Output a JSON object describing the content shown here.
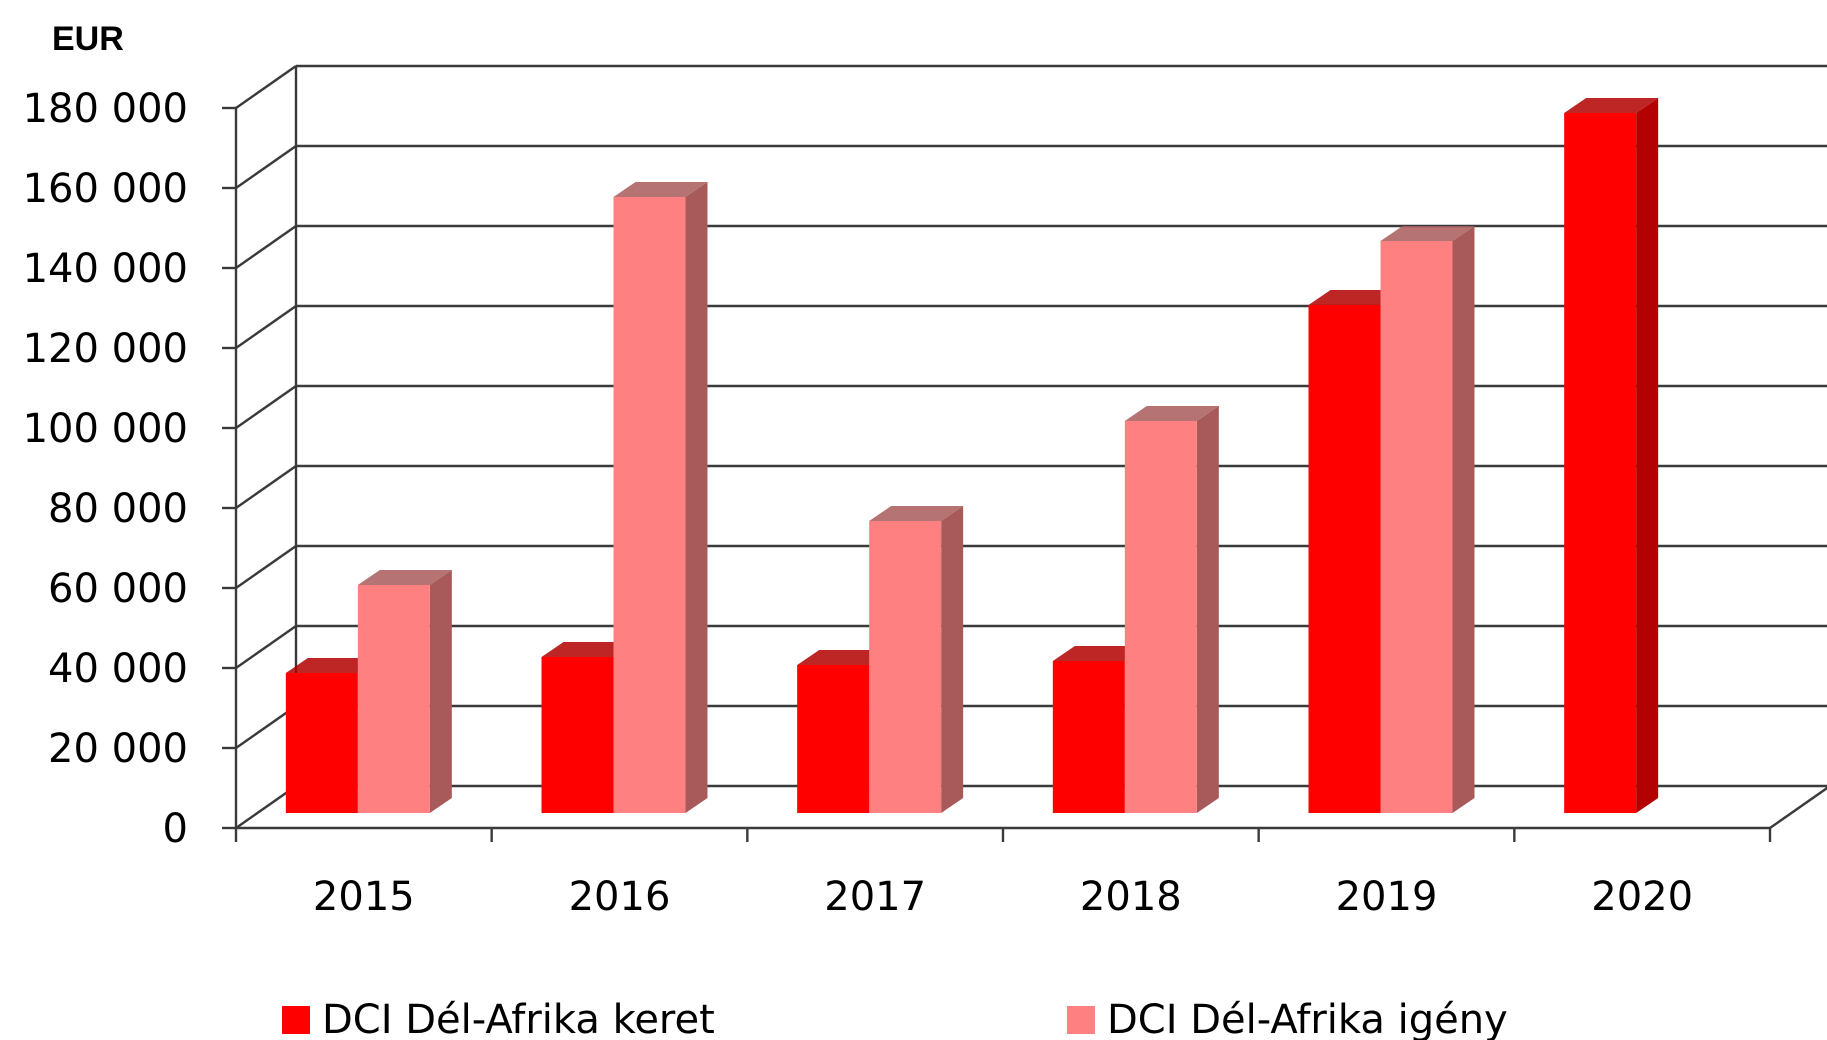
{
  "chart_data": {
    "type": "bar",
    "title": "",
    "ylabel": "EUR",
    "xlabel": "",
    "categories": [
      "2015",
      "2016",
      "2017",
      "2018",
      "2019",
      "2020"
    ],
    "series": [
      {
        "name": "DCI Dél-Afrika keret",
        "values": [
          35000,
          39000,
          37000,
          38000,
          127000,
          175000
        ],
        "color": "#ff0000",
        "side_color": "#b30000"
      },
      {
        "name": "DCI Dél-Afrika igény",
        "values": [
          57000,
          154000,
          73000,
          98000,
          143000,
          null
        ],
        "color": "#ff8080",
        "side_color": "#a85a5a"
      }
    ],
    "ylim": [
      0,
      180000
    ],
    "yticks": [
      0,
      20000,
      40000,
      60000,
      80000,
      100000,
      120000,
      140000,
      160000,
      180000
    ],
    "ytick_labels": [
      "0",
      "20 000",
      "40 000",
      "60 000",
      "80 000",
      "100 000",
      "120 000",
      "140 000",
      "160 000",
      "180 000"
    ],
    "grid": true,
    "style": "3d-clustered-column",
    "legend_position": "bottom"
  }
}
